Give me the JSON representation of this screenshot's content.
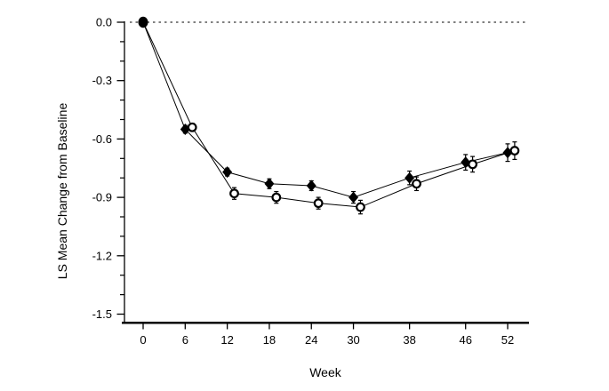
{
  "chart_data": {
    "type": "line",
    "title": "",
    "xlabel": "Week",
    "ylabel": "LS Mean Change from Baseline",
    "grid": false,
    "legend": "none",
    "xlim": [
      -3,
      55.5
    ],
    "ylim": [
      -1.55,
      0.0
    ],
    "x_ticks": [
      0,
      6,
      12,
      18,
      24,
      30,
      38,
      46,
      52
    ],
    "y_ticks": [
      {
        "value": 0.0,
        "label": "0.0"
      },
      {
        "value": -0.3,
        "label": "-0.3"
      },
      {
        "value": -0.6,
        "label": "-0.6"
      },
      {
        "value": -0.9,
        "label": "-0.9"
      },
      {
        "value": -1.2,
        "label": "-1.2"
      },
      {
        "value": -1.5,
        "label": "-1.5"
      }
    ],
    "y_minor_tick_step": 0.1,
    "reference_line": {
      "y": 0.0,
      "style": "dotted",
      "color": "#000000"
    },
    "axis_color": "#000000",
    "series_color": "#000000",
    "baseline_marker": {
      "x": 0,
      "y": 0.0,
      "marker": "filled-circle"
    },
    "series": [
      {
        "name": "filled-diamond-series",
        "marker": "filled-diamond",
        "x": [
          0,
          6,
          12,
          18,
          24,
          30,
          38,
          46,
          52
        ],
        "y": [
          0.0,
          -0.55,
          -0.77,
          -0.83,
          -0.84,
          -0.9,
          -0.8,
          -0.72,
          -0.67
        ],
        "y_err": [
          0,
          0.02,
          0.02,
          0.025,
          0.025,
          0.03,
          0.035,
          0.04,
          0.045
        ]
      },
      {
        "name": "open-circle-series",
        "marker": "open-circle",
        "x_display_offset_weeks": 1,
        "x": [
          0,
          6,
          12,
          18,
          24,
          30,
          38,
          46,
          52
        ],
        "y": [
          0.0,
          -0.54,
          -0.88,
          -0.9,
          -0.93,
          -0.95,
          -0.83,
          -0.73,
          -0.66
        ],
        "y_err": [
          0,
          0.02,
          0.03,
          0.03,
          0.03,
          0.035,
          0.035,
          0.04,
          0.045
        ]
      }
    ]
  }
}
